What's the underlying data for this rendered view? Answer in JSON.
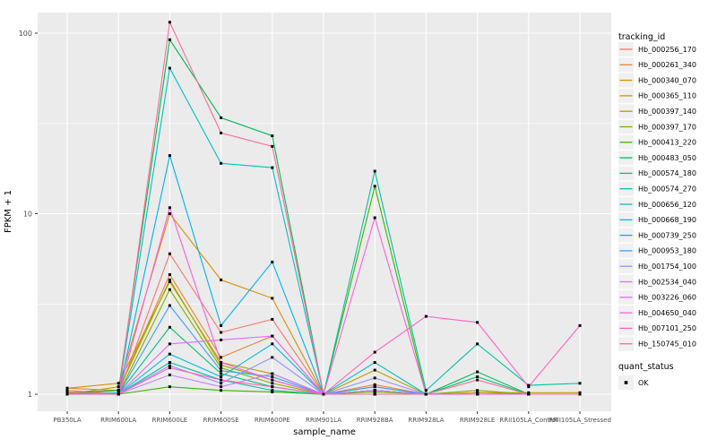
{
  "chart_data": {
    "type": "line",
    "title": "",
    "xlabel": "sample_name",
    "ylabel": "FPKM + 1",
    "y_scale": "log10",
    "ylim": [
      1,
      130
    ],
    "y_ticks": [
      1,
      10,
      100
    ],
    "y_minor_ticks": [
      3.16,
      31.6
    ],
    "grid": "on",
    "panel_bg": "#EBEBEB",
    "grid_color": "#FFFFFF",
    "tick_label_color": "#4D4D4D",
    "point_color": "#000000",
    "legend_position": "right",
    "categories": [
      "PB350LA",
      "RRIM600LA",
      "RRIM600LE",
      "RRIM600SE",
      "RRIM600PE",
      "RRIM901LA",
      "RRIM928BA",
      "RRIM928LA",
      "RRIM928LE",
      "RRII105LA_Control",
      "RRII105LA_Stressed"
    ],
    "series": [
      {
        "name": "Hb_000256_170",
        "color": "#F8766D",
        "values": [
          1.05,
          1.0,
          6.0,
          2.2,
          2.6,
          1.0,
          1.1,
          1.0,
          1.0,
          1.0,
          1.0
        ]
      },
      {
        "name": "Hb_000261_340",
        "color": "#EA8331",
        "values": [
          1.08,
          1.05,
          4.6,
          1.6,
          2.1,
          1.0,
          1.13,
          1.0,
          1.0,
          1.0,
          1.0
        ]
      },
      {
        "name": "Hb_000340_070",
        "color": "#D89000",
        "values": [
          1.0,
          1.1,
          10.0,
          4.3,
          3.4,
          1.0,
          1.05,
          1.0,
          1.02,
          1.0,
          1.0
        ]
      },
      {
        "name": "Hb_000365_110",
        "color": "#C09B00",
        "values": [
          1.08,
          1.15,
          4.2,
          1.5,
          1.3,
          1.0,
          1.36,
          1.0,
          1.02,
          1.02,
          1.02
        ]
      },
      {
        "name": "Hb_000397_140",
        "color": "#A3A500",
        "values": [
          1.0,
          1.05,
          4.3,
          1.45,
          1.2,
          1.0,
          1.05,
          1.0,
          1.0,
          1.0,
          1.0
        ]
      },
      {
        "name": "Hb_000397_170",
        "color": "#7CAE00",
        "values": [
          1.0,
          1.0,
          3.8,
          1.4,
          1.15,
          1.0,
          1.03,
          1.0,
          1.05,
          1.0,
          1.0
        ]
      },
      {
        "name": "Hb_000413_220",
        "color": "#39B600",
        "values": [
          1.0,
          1.0,
          1.1,
          1.05,
          1.03,
          1.0,
          14.2,
          1.0,
          1.0,
          1.0,
          1.0
        ]
      },
      {
        "name": "Hb_000483_050",
        "color": "#00BB4E",
        "values": [
          1.02,
          1.05,
          92,
          34,
          27,
          1.0,
          1.0,
          1.0,
          1.33,
          1.0,
          1.0
        ]
      },
      {
        "name": "Hb_000574_180",
        "color": "#00BF7D",
        "values": [
          1.0,
          1.0,
          2.35,
          1.3,
          1.1,
          1.0,
          1.0,
          1.0,
          1.25,
          1.0,
          1.0
        ]
      },
      {
        "name": "Hb_000574_270",
        "color": "#00C1A3",
        "values": [
          1.0,
          1.0,
          1.5,
          1.2,
          1.05,
          1.0,
          17.2,
          1.05,
          1.9,
          1.12,
          1.15
        ]
      },
      {
        "name": "Hb_000656_120",
        "color": "#00BFC4",
        "values": [
          1.0,
          1.02,
          64,
          19,
          18,
          1.0,
          1.5,
          1.0,
          1.0,
          1.0,
          1.0
        ]
      },
      {
        "name": "Hb_000668_190",
        "color": "#00BAE0",
        "values": [
          1.0,
          1.0,
          1.67,
          1.25,
          1.9,
          1.0,
          1.05,
          1.0,
          1.0,
          1.0,
          1.0
        ]
      },
      {
        "name": "Hb_000739_250",
        "color": "#00B0F6",
        "values": [
          1.0,
          1.0,
          21,
          2.4,
          5.4,
          1.0,
          1.0,
          1.0,
          1.0,
          1.0,
          1.0
        ]
      },
      {
        "name": "Hb_000953_180",
        "color": "#35A2FF",
        "values": [
          1.0,
          1.0,
          3.1,
          1.35,
          1.25,
          1.0,
          1.1,
          1.0,
          1.0,
          1.0,
          1.0
        ]
      },
      {
        "name": "Hb_001754_100",
        "color": "#9590FF",
        "values": [
          1.0,
          1.0,
          1.44,
          1.15,
          1.6,
          1.0,
          1.23,
          1.0,
          1.0,
          1.0,
          1.0
        ]
      },
      {
        "name": "Hb_002534_040",
        "color": "#C77CFF",
        "values": [
          1.0,
          1.0,
          1.28,
          1.1,
          1.3,
          1.0,
          1.05,
          1.0,
          1.0,
          1.0,
          1.0
        ]
      },
      {
        "name": "Hb_003226_060",
        "color": "#E76BF3",
        "values": [
          1.0,
          1.0,
          1.9,
          2.0,
          2.1,
          1.0,
          1.0,
          1.0,
          1.0,
          1.0,
          1.0
        ]
      },
      {
        "name": "Hb_004650_040",
        "color": "#FA62DB",
        "values": [
          1.0,
          1.0,
          10.8,
          1.5,
          1.2,
          1.0,
          9.5,
          1.0,
          1.0,
          1.0,
          1.0
        ]
      },
      {
        "name": "Hb_007101_250",
        "color": "#FF62BC",
        "values": [
          1.0,
          1.0,
          1.4,
          1.2,
          1.1,
          1.0,
          1.71,
          2.7,
          2.5,
          1.1,
          2.4
        ]
      },
      {
        "name": "Hb_150745_010",
        "color": "#FF6A98",
        "values": [
          1.03,
          1.0,
          115,
          28,
          23.6,
          1.0,
          1.0,
          1.0,
          1.2,
          1.0,
          1.0
        ]
      }
    ]
  },
  "legend": {
    "title": "tracking_id"
  },
  "quant_legend": {
    "title": "quant_status",
    "items": [
      "OK"
    ]
  }
}
